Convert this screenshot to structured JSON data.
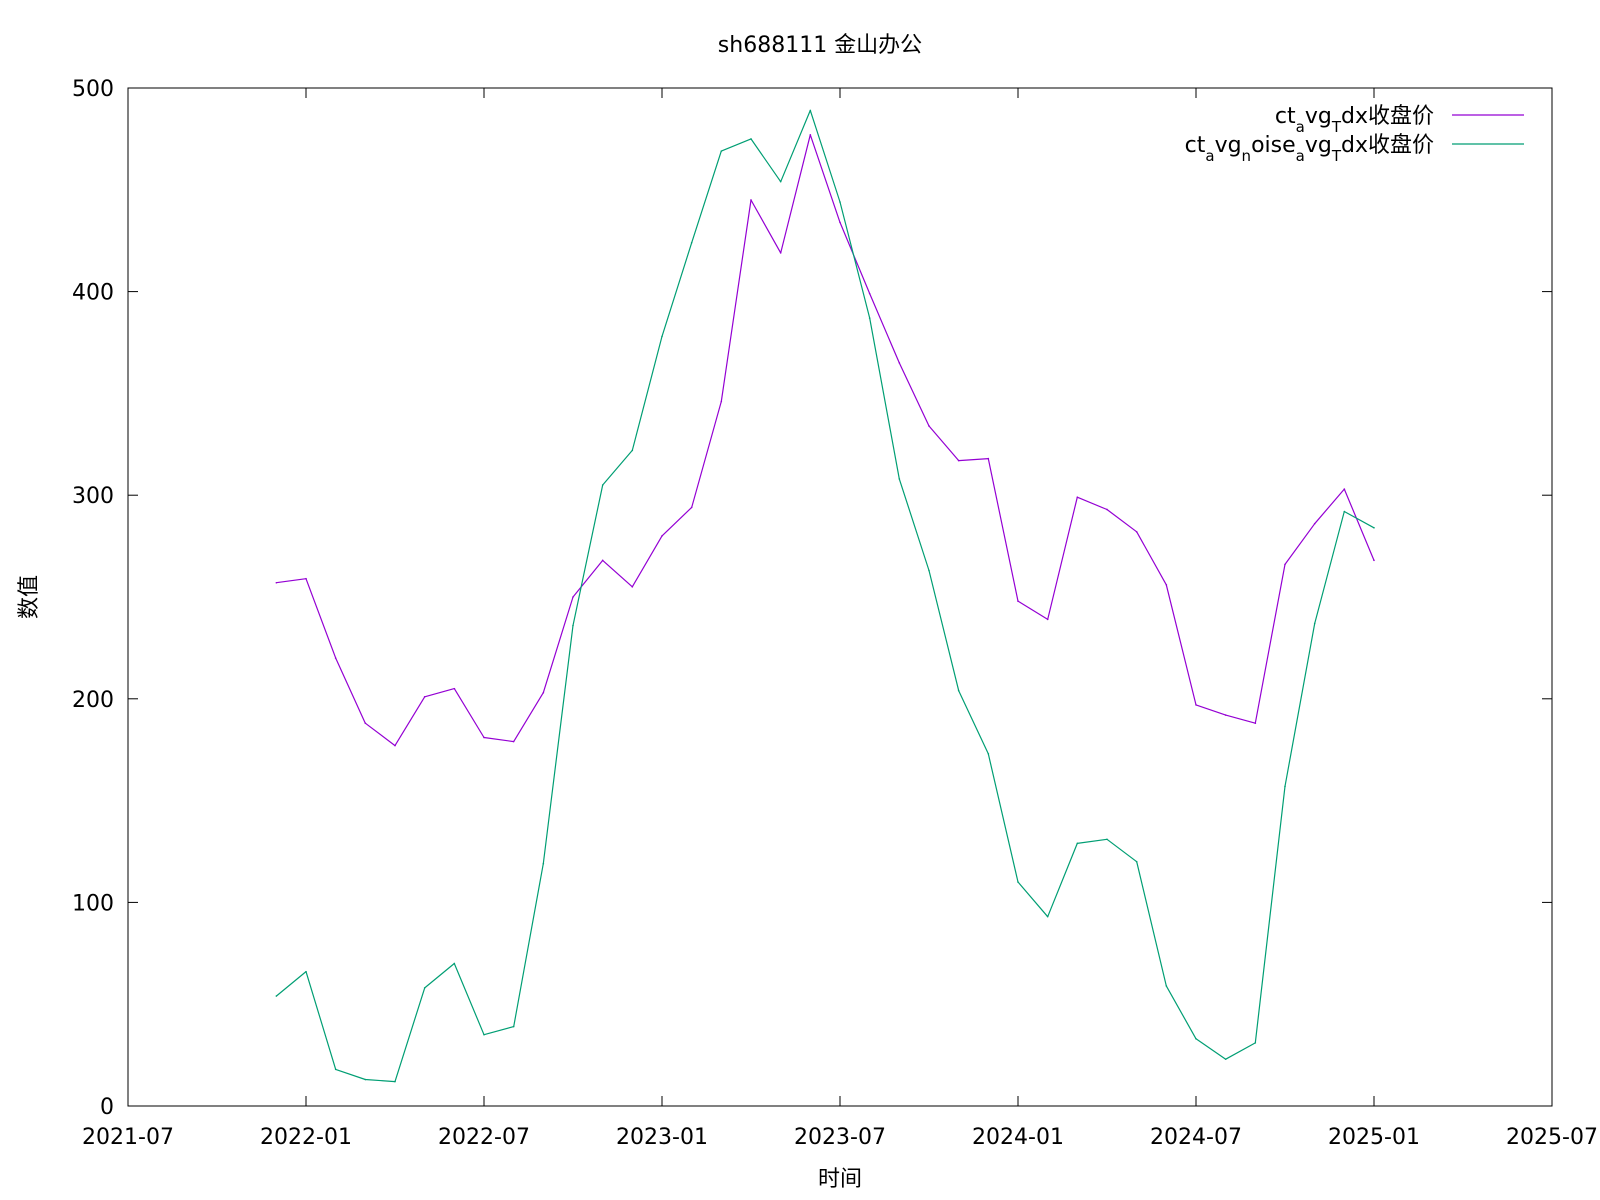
{
  "chart_data": {
    "type": "line",
    "title": "sh688111 金山办公",
    "xlabel": "时间",
    "ylabel": "数值",
    "x_ticks": [
      "2021-07",
      "2022-01",
      "2022-07",
      "2023-01",
      "2023-07",
      "2024-01",
      "2024-07",
      "2025-01",
      "2025-07"
    ],
    "y_ticks": [
      "0",
      "100",
      "200",
      "300",
      "400",
      "500"
    ],
    "ylim": [
      0,
      500
    ],
    "xlim": [
      "2021-07",
      "2025-07"
    ],
    "legend_position": "top-right",
    "grid": false,
    "x": [
      "2021-12",
      "2022-01",
      "2022-02",
      "2022-03",
      "2022-04",
      "2022-05",
      "2022-06",
      "2022-07",
      "2022-08",
      "2022-09",
      "2022-10",
      "2022-11",
      "2022-12",
      "2023-01",
      "2023-02",
      "2023-03",
      "2023-04",
      "2023-05",
      "2023-06",
      "2023-07",
      "2023-08",
      "2023-09",
      "2023-10",
      "2023-11",
      "2023-12",
      "2024-01",
      "2024-02",
      "2024-03",
      "2024-04",
      "2024-05",
      "2024-06",
      "2024-07",
      "2024-08",
      "2024-09",
      "2024-10",
      "2024-11",
      "2024-12",
      "2025-01"
    ],
    "series": [
      {
        "name": "ct_avg_Tdx收盘价",
        "name_parts": [
          {
            "t": "ct",
            "sub": false
          },
          {
            "t": "a",
            "sub": true
          },
          {
            "t": "vg",
            "sub": false
          },
          {
            "t": "T",
            "sub": true
          },
          {
            "t": "dx收盘价",
            "sub": false
          }
        ],
        "color": "#9400d3",
        "values": [
          257,
          259,
          220,
          188,
          177,
          201,
          205,
          181,
          179,
          203,
          250,
          268,
          255,
          280,
          294,
          346,
          445,
          419,
          477,
          434,
          399,
          365,
          334,
          317,
          318,
          248,
          239,
          299,
          293,
          282,
          256,
          197,
          192,
          188,
          266,
          286,
          303,
          268
        ]
      },
      {
        "name": "ct_avg_noise_avg_Tdx收盘价",
        "name_parts": [
          {
            "t": "ct",
            "sub": false
          },
          {
            "t": "a",
            "sub": true
          },
          {
            "t": "vg",
            "sub": false
          },
          {
            "t": "n",
            "sub": true
          },
          {
            "t": "oise",
            "sub": false
          },
          {
            "t": "a",
            "sub": true
          },
          {
            "t": "vg",
            "sub": false
          },
          {
            "t": "T",
            "sub": true
          },
          {
            "t": "dx收盘价",
            "sub": false
          }
        ],
        "color": "#009e73",
        "values": [
          54,
          66,
          18,
          13,
          12,
          58,
          70,
          35,
          39,
          119,
          236,
          305,
          322,
          378,
          424,
          469,
          475,
          454,
          489,
          444,
          387,
          308,
          263,
          204,
          173,
          110,
          93,
          129,
          131,
          120,
          59,
          33,
          23,
          31,
          157,
          237,
          292,
          284
        ]
      }
    ]
  },
  "colors": {
    "series1": "#9400d3",
    "series2": "#009e73",
    "axis": "#000000"
  }
}
